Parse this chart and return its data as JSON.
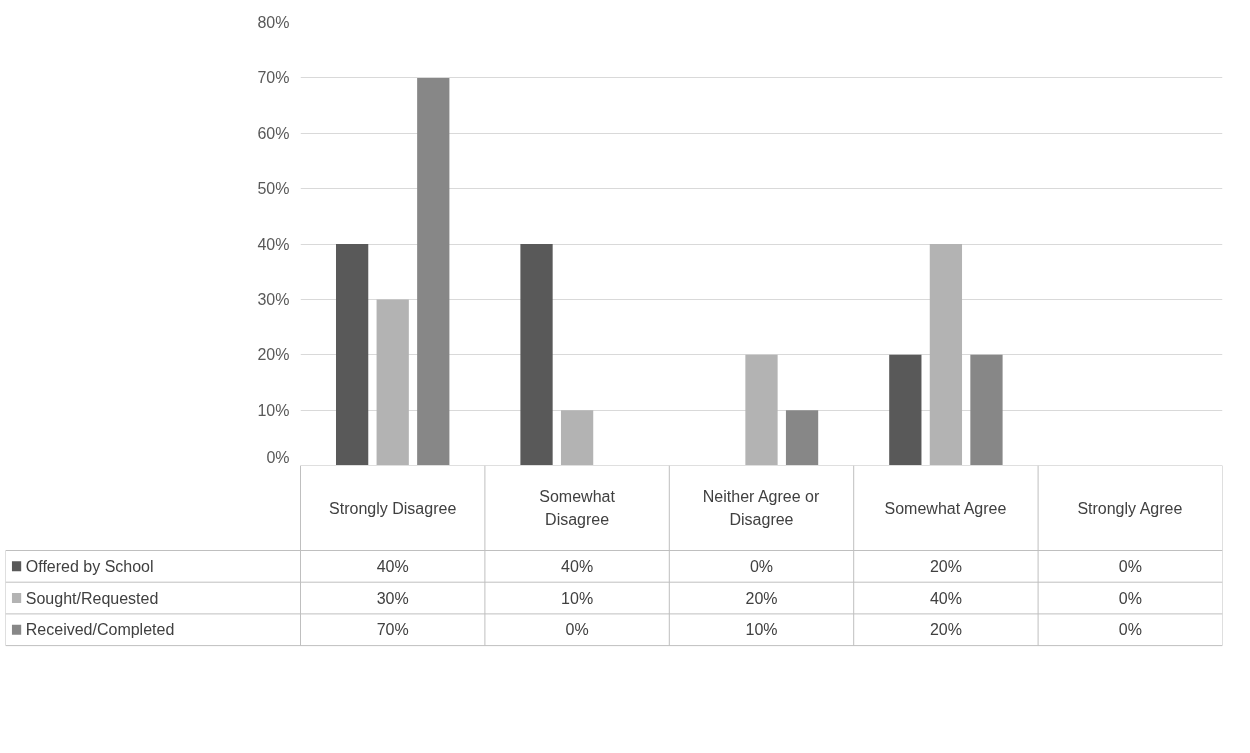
{
  "chart_data": {
    "type": "bar",
    "categories": [
      "Strongly Disagree",
      "Somewhat Disagree",
      "Neither Agree or Disagree",
      "Somewhat Agree",
      "Strongly Agree"
    ],
    "series": [
      {
        "name": "Offered by School",
        "color": "#595959",
        "values": [
          40,
          40,
          0,
          20,
          0
        ],
        "value_labels": [
          "40%",
          "40%",
          "0%",
          "20%",
          "0%"
        ]
      },
      {
        "name": "Sought/Requested",
        "color": "#b3b3b3",
        "values": [
          30,
          10,
          20,
          40,
          0
        ],
        "value_labels": [
          "30%",
          "10%",
          "20%",
          "40%",
          "0%"
        ]
      },
      {
        "name": "Received/Completed",
        "color": "#878787",
        "values": [
          70,
          0,
          10,
          20,
          0
        ],
        "value_labels": [
          "70%",
          "0%",
          "10%",
          "20%",
          "0%"
        ]
      }
    ],
    "ylim": [
      0,
      80
    ],
    "yticks": [
      {
        "value": 0,
        "label": "0%"
      },
      {
        "value": 10,
        "label": "10%"
      },
      {
        "value": 20,
        "label": "20%"
      },
      {
        "value": 30,
        "label": "30%"
      },
      {
        "value": 40,
        "label": "40%"
      },
      {
        "value": 50,
        "label": "50%"
      },
      {
        "value": 60,
        "label": "60%"
      },
      {
        "value": 70,
        "label": "70%"
      },
      {
        "value": 80,
        "label": "80%"
      }
    ],
    "grid": "y",
    "legend": "bottom"
  }
}
